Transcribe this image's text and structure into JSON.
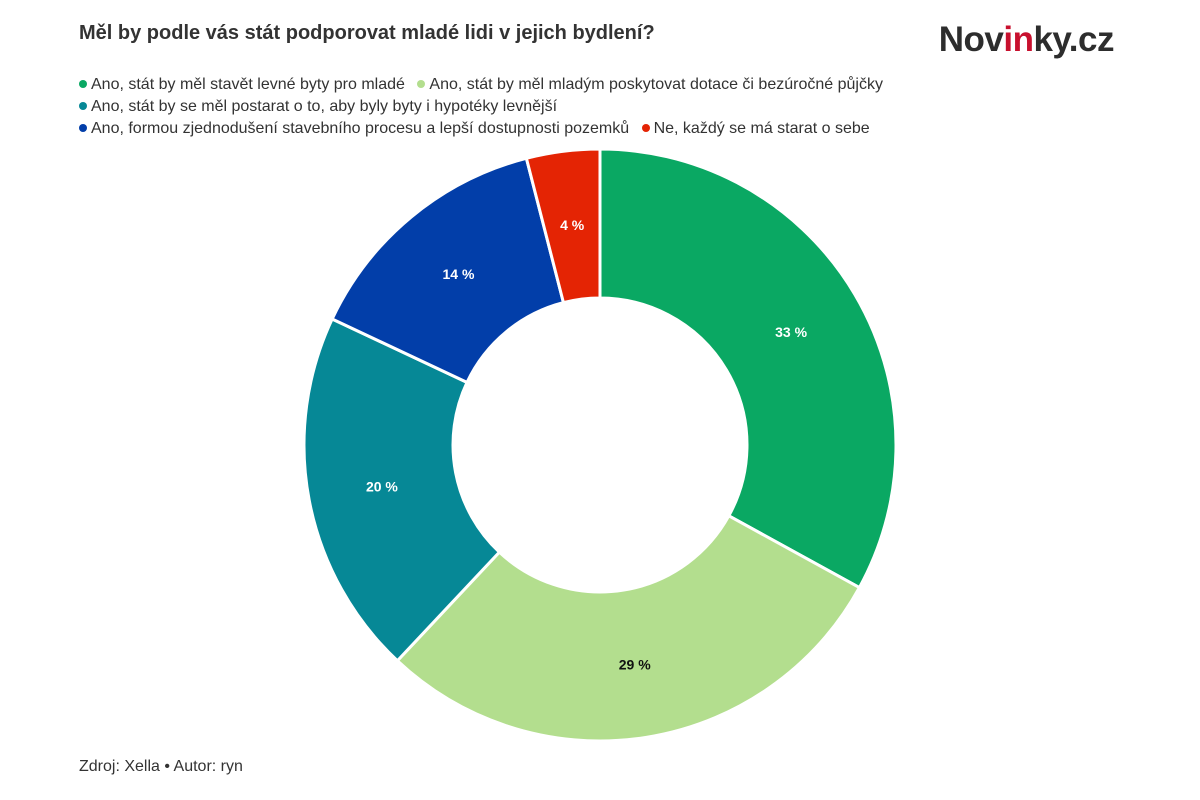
{
  "title": "Měl by podle vás stát podporovat mladé lidi v jejich bydlení?",
  "logo": {
    "prefix": "Nov",
    "accent": "in",
    "suffix": "ky.cz"
  },
  "source": "Zdroj: Xella • Autor: ryn",
  "chart_data": {
    "type": "pie",
    "title": "Měl by podle vás stát podporovat mladé lidi v jejich bydlení?",
    "donut": true,
    "legend_position": "top-left",
    "series": [
      {
        "name": "Ano, stát by měl stavět levné byty pro mladé",
        "value": 33,
        "label": "33 %",
        "color": "#0aa863",
        "label_color": "#ffffff"
      },
      {
        "name": "Ano, stát by měl mladým poskytovat dotace či bezúročné půjčky",
        "value": 29,
        "label": "29 %",
        "color": "#b3de8e",
        "label_color": "#111111"
      },
      {
        "name": "Ano, stát by se měl postarat o to, aby byly byty i hypotéky levnější",
        "value": 20,
        "label": "20 %",
        "color": "#068896",
        "label_color": "#ffffff"
      },
      {
        "name": "Ano, formou zjednodušení stavebního procesu a lepší dostupnosti pozemků",
        "value": 14,
        "label": "14 %",
        "color": "#023ea9",
        "label_color": "#ffffff"
      },
      {
        "name": "Ne, každý se má starat o sebe",
        "value": 4,
        "label": "4 %",
        "color": "#e42404",
        "label_color": "#ffffff"
      }
    ]
  }
}
